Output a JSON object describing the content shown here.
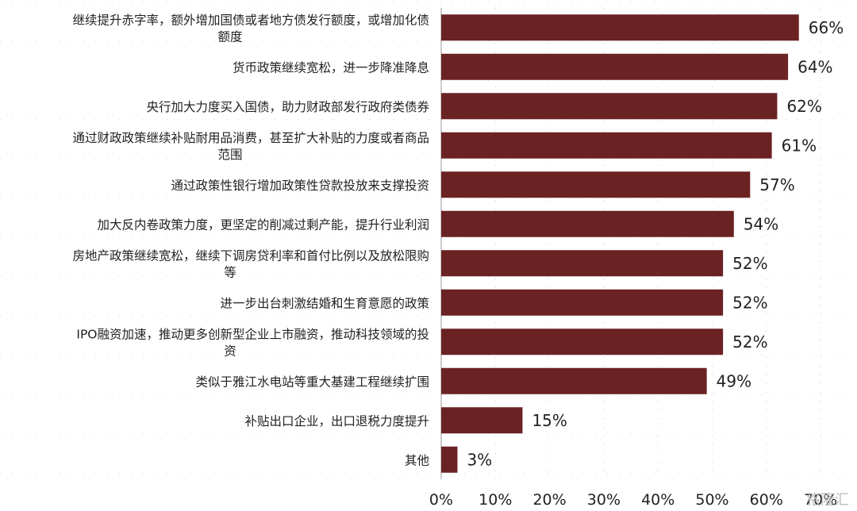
{
  "chart_data": {
    "type": "bar",
    "orientation": "horizontal",
    "categories": [
      [
        "继续提升赤字率，额外增加国债或者地方债发行额度，或增加化债",
        "额度"
      ],
      [
        "货币政策继续宽松，进一步降准降息"
      ],
      [
        "央行加大力度买入国债，助力财政部发行政府类债券"
      ],
      [
        "通过财政政策继续补贴耐用品消费，甚至扩大补贴的力度或者商品",
        "范围"
      ],
      [
        "通过政策性银行增加政策性贷款投放来支撑投资"
      ],
      [
        "加大反内卷政策力度，更坚定的削减过剩产能，提升行业利润"
      ],
      [
        "房地产政策继续宽松，继续下调房贷利率和首付比例以及放松限购",
        "等"
      ],
      [
        "进一步出台刺激结婚和生育意愿的政策"
      ],
      [
        "IPO融资加速，推动更多创新型企业上市融资，推动科技领域的投",
        "资"
      ],
      [
        "类似于雅江水电站等重大基建工程继续扩围"
      ],
      [
        "补贴出口企业，出口退税力度提升"
      ],
      [
        "其他"
      ]
    ],
    "values": [
      66,
      64,
      62,
      61,
      57,
      54,
      52,
      52,
      52,
      49,
      15,
      3
    ],
    "value_labels": [
      "66%",
      "64%",
      "62%",
      "61%",
      "57%",
      "54%",
      "52%",
      "52%",
      "52%",
      "49%",
      "15%",
      "3%"
    ],
    "xlim": [
      0,
      70
    ],
    "x_ticks": [
      "0%",
      "10%",
      "20%",
      "30%",
      "40%",
      "50%",
      "60%",
      "70%"
    ],
    "bar_color": "#6b2223",
    "grid": true
  },
  "watermark": "格隆汇"
}
